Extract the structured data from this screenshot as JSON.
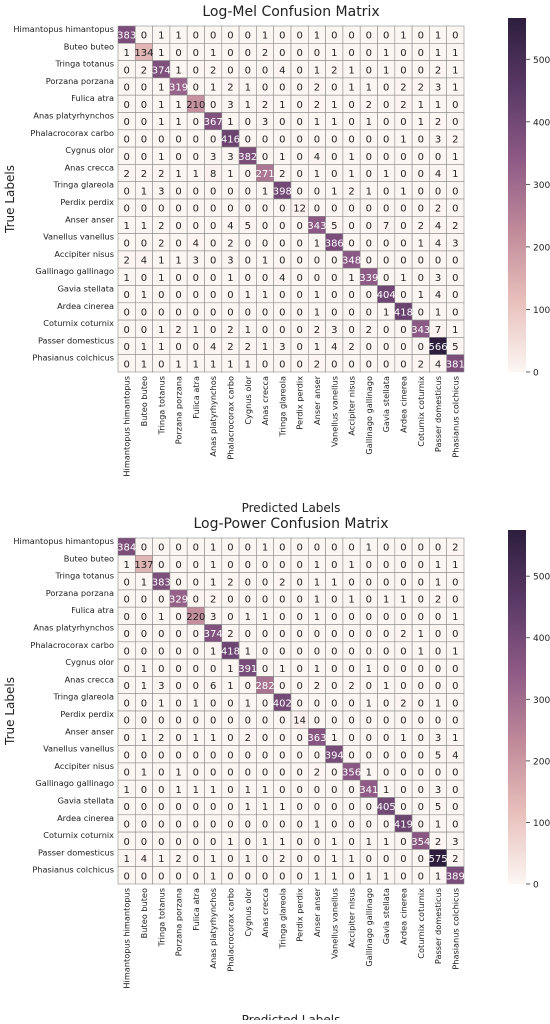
{
  "chart_data": [
    {
      "type": "heatmap",
      "title": "Log-Mel Confusion Matrix",
      "xlabel": "Predicted Labels",
      "ylabel": "True Labels",
      "categories": [
        "Himantopus himantopus",
        "Buteo buteo",
        "Tringa totanus",
        "Porzana porzana",
        "Fulica atra",
        "Anas platyrhynchos",
        "Phalacrocorax carbo",
        "Cygnus olor",
        "Anas crecca",
        "Tringa glareola",
        "Perdix perdix",
        "Anser anser",
        "Vanellus vanellus",
        "Accipiter nisus",
        "Gallinago gallinago",
        "Gavia stellata",
        "Ardea cinerea",
        "Coturnix coturnix",
        "Passer domesticus",
        "Phasianus colchicus"
      ],
      "matrix": [
        [
          383,
          0,
          1,
          1,
          0,
          0,
          0,
          0,
          1,
          0,
          0,
          1,
          0,
          0,
          0,
          0,
          1,
          0,
          1,
          0
        ],
        [
          1,
          134,
          1,
          0,
          0,
          1,
          0,
          0,
          2,
          0,
          0,
          0,
          1,
          0,
          0,
          1,
          0,
          0,
          1,
          1
        ],
        [
          0,
          2,
          374,
          1,
          0,
          2,
          0,
          0,
          0,
          4,
          0,
          1,
          2,
          1,
          0,
          1,
          0,
          0,
          2,
          1
        ],
        [
          0,
          0,
          1,
          319,
          0,
          1,
          2,
          1,
          0,
          0,
          0,
          2,
          0,
          1,
          1,
          0,
          2,
          2,
          3,
          1
        ],
        [
          0,
          0,
          1,
          1,
          210,
          0,
          3,
          1,
          2,
          1,
          0,
          2,
          1,
          0,
          2,
          0,
          2,
          1,
          1,
          0
        ],
        [
          0,
          0,
          1,
          1,
          0,
          367,
          1,
          0,
          3,
          0,
          0,
          1,
          1,
          0,
          1,
          0,
          0,
          1,
          2,
          0
        ],
        [
          0,
          0,
          0,
          0,
          0,
          0,
          416,
          0,
          0,
          0,
          0,
          0,
          0,
          0,
          0,
          0,
          1,
          0,
          3,
          2
        ],
        [
          0,
          0,
          1,
          0,
          0,
          3,
          3,
          382,
          0,
          1,
          0,
          4,
          0,
          1,
          0,
          0,
          0,
          0,
          0,
          1
        ],
        [
          2,
          2,
          2,
          1,
          1,
          8,
          1,
          0,
          271,
          2,
          0,
          1,
          0,
          1,
          0,
          1,
          0,
          0,
          4,
          1
        ],
        [
          0,
          1,
          3,
          0,
          0,
          0,
          0,
          0,
          1,
          398,
          0,
          0,
          1,
          2,
          1,
          0,
          1,
          0,
          0,
          0
        ],
        [
          0,
          0,
          0,
          0,
          0,
          0,
          0,
          0,
          0,
          0,
          12,
          0,
          0,
          0,
          0,
          0,
          0,
          0,
          2,
          0
        ],
        [
          1,
          1,
          2,
          0,
          0,
          0,
          4,
          5,
          0,
          0,
          0,
          343,
          5,
          0,
          0,
          7,
          0,
          2,
          4,
          2
        ],
        [
          0,
          0,
          2,
          0,
          4,
          0,
          2,
          0,
          0,
          0,
          0,
          1,
          386,
          0,
          0,
          0,
          0,
          1,
          4,
          3
        ],
        [
          2,
          4,
          1,
          1,
          3,
          0,
          3,
          0,
          1,
          0,
          0,
          0,
          0,
          348,
          0,
          0,
          0,
          0,
          0,
          0
        ],
        [
          1,
          0,
          1,
          0,
          0,
          0,
          1,
          0,
          0,
          4,
          0,
          0,
          0,
          1,
          339,
          0,
          1,
          0,
          3,
          0
        ],
        [
          0,
          1,
          0,
          0,
          0,
          0,
          0,
          1,
          1,
          0,
          0,
          1,
          0,
          0,
          0,
          404,
          0,
          1,
          4,
          0
        ],
        [
          0,
          0,
          0,
          0,
          0,
          0,
          0,
          0,
          0,
          0,
          0,
          1,
          0,
          0,
          0,
          1,
          418,
          0,
          1,
          0
        ],
        [
          0,
          0,
          1,
          2,
          1,
          0,
          2,
          1,
          0,
          0,
          0,
          2,
          3,
          0,
          2,
          0,
          0,
          343,
          7,
          1
        ],
        [
          0,
          1,
          1,
          0,
          0,
          4,
          2,
          2,
          1,
          3,
          0,
          1,
          4,
          2,
          0,
          0,
          0,
          0,
          566,
          5
        ],
        [
          0,
          1,
          0,
          1,
          1,
          1,
          1,
          1,
          0,
          0,
          0,
          2,
          0,
          0,
          0,
          0,
          0,
          2,
          4,
          381
        ]
      ],
      "colorbar": {
        "min": 0,
        "max": 566,
        "ticks": [
          0,
          100,
          200,
          300,
          400,
          500
        ]
      },
      "colors": [
        "#fcf6f3",
        "#e8c0bb",
        "#c08a9a",
        "#8e5a86",
        "#5a3966",
        "#2d1e3e"
      ],
      "grid": true
    },
    {
      "type": "heatmap",
      "title": "Log-Power Confusion Matrix",
      "xlabel": "Predicted Labels",
      "ylabel": "True Labels",
      "categories": [
        "Himantopus himantopus",
        "Buteo buteo",
        "Tringa totanus",
        "Porzana porzana",
        "Fulica atra",
        "Anas platyrhynchos",
        "Phalacrocorax carbo",
        "Cygnus olor",
        "Anas crecca",
        "Tringa glareola",
        "Perdix perdix",
        "Anser anser",
        "Vanellus vanellus",
        "Accipiter nisus",
        "Gallinago gallinago",
        "Gavia stellata",
        "Ardea cinerea",
        "Coturnix coturnix",
        "Passer domesticus",
        "Phasianus colchicus"
      ],
      "matrix": [
        [
          384,
          0,
          0,
          0,
          0,
          1,
          0,
          0,
          1,
          0,
          0,
          0,
          0,
          0,
          1,
          0,
          0,
          0,
          0,
          2
        ],
        [
          1,
          137,
          0,
          0,
          0,
          1,
          0,
          0,
          0,
          0,
          0,
          1,
          0,
          1,
          0,
          0,
          0,
          0,
          1,
          1
        ],
        [
          0,
          1,
          383,
          0,
          0,
          1,
          2,
          0,
          0,
          2,
          0,
          1,
          1,
          0,
          0,
          0,
          0,
          0,
          1,
          0
        ],
        [
          0,
          0,
          0,
          329,
          0,
          2,
          0,
          0,
          0,
          0,
          0,
          1,
          0,
          1,
          0,
          1,
          1,
          0,
          2,
          0
        ],
        [
          0,
          0,
          1,
          0,
          220,
          3,
          0,
          1,
          1,
          0,
          0,
          1,
          0,
          0,
          0,
          0,
          0,
          0,
          0,
          1
        ],
        [
          0,
          0,
          0,
          0,
          0,
          374,
          2,
          0,
          0,
          0,
          0,
          0,
          0,
          0,
          0,
          0,
          2,
          1,
          0,
          0
        ],
        [
          0,
          0,
          0,
          0,
          0,
          1,
          418,
          1,
          0,
          0,
          0,
          0,
          0,
          0,
          0,
          0,
          0,
          1,
          0,
          1
        ],
        [
          0,
          1,
          0,
          0,
          0,
          0,
          1,
          391,
          0,
          1,
          0,
          1,
          0,
          0,
          1,
          0,
          0,
          0,
          0,
          0
        ],
        [
          0,
          1,
          3,
          0,
          0,
          6,
          1,
          0,
          282,
          0,
          0,
          2,
          0,
          2,
          0,
          1,
          0,
          0,
          0,
          0
        ],
        [
          0,
          0,
          1,
          0,
          1,
          0,
          0,
          1,
          0,
          402,
          0,
          0,
          0,
          0,
          1,
          0,
          2,
          0,
          1,
          0
        ],
        [
          0,
          0,
          0,
          0,
          0,
          0,
          0,
          0,
          0,
          0,
          14,
          0,
          0,
          0,
          0,
          0,
          0,
          0,
          0,
          0
        ],
        [
          0,
          1,
          2,
          0,
          1,
          1,
          0,
          2,
          0,
          0,
          0,
          363,
          1,
          0,
          0,
          0,
          1,
          0,
          3,
          1
        ],
        [
          0,
          0,
          0,
          0,
          0,
          0,
          0,
          0,
          0,
          0,
          0,
          0,
          394,
          0,
          0,
          0,
          0,
          0,
          5,
          4
        ],
        [
          0,
          1,
          0,
          1,
          0,
          0,
          0,
          0,
          0,
          0,
          0,
          2,
          0,
          356,
          1,
          0,
          0,
          0,
          0,
          0
        ],
        [
          1,
          0,
          0,
          1,
          1,
          1,
          0,
          1,
          1,
          0,
          0,
          0,
          0,
          0,
          341,
          1,
          0,
          0,
          3,
          0
        ],
        [
          0,
          0,
          0,
          0,
          0,
          0,
          0,
          1,
          1,
          1,
          0,
          0,
          0,
          0,
          0,
          405,
          0,
          0,
          5,
          0
        ],
        [
          0,
          0,
          0,
          0,
          0,
          0,
          0,
          0,
          0,
          0,
          0,
          1,
          0,
          0,
          0,
          0,
          419,
          0,
          1,
          0
        ],
        [
          0,
          0,
          0,
          0,
          0,
          0,
          1,
          0,
          1,
          1,
          0,
          0,
          1,
          0,
          1,
          1,
          0,
          354,
          2,
          3
        ],
        [
          1,
          4,
          1,
          2,
          0,
          1,
          0,
          1,
          0,
          2,
          0,
          0,
          1,
          1,
          0,
          0,
          0,
          0,
          575,
          2
        ],
        [
          0,
          0,
          0,
          0,
          0,
          1,
          0,
          0,
          0,
          0,
          0,
          1,
          1,
          0,
          1,
          1,
          0,
          0,
          1,
          389
        ]
      ],
      "colorbar": {
        "min": 0,
        "max": 575,
        "ticks": [
          0,
          100,
          200,
          300,
          400,
          500
        ]
      },
      "colors": [
        "#fcf6f3",
        "#e8c0bb",
        "#c08a9a",
        "#8e5a86",
        "#5a3966",
        "#2d1e3e"
      ],
      "grid": true
    }
  ]
}
